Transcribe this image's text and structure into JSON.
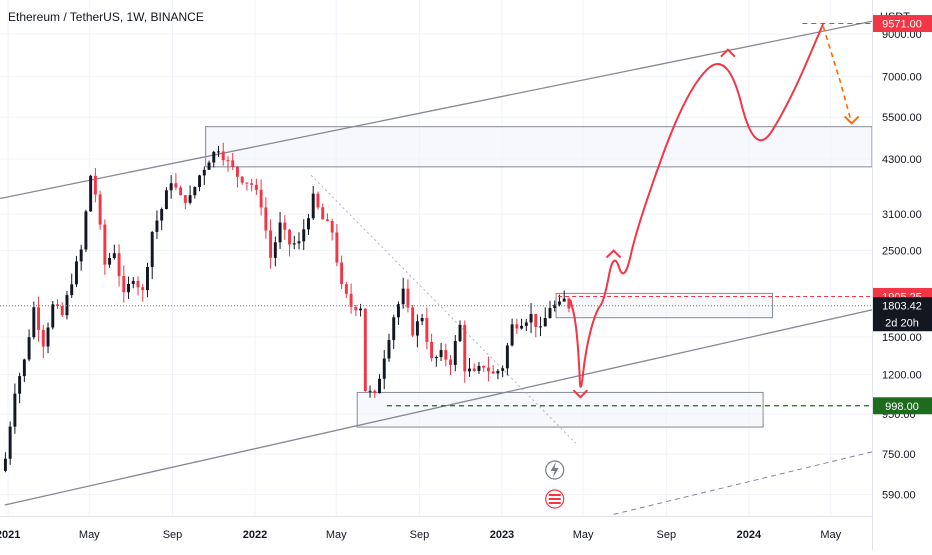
{
  "header": {
    "symbol_title": "Ethereum / TetherUS, 1W, BINANCE"
  },
  "price_axis": {
    "currency": "USDT",
    "ticks": [
      "9000.00",
      "7000.00",
      "5500.00",
      "4300.00",
      "3100.00",
      "2500.00",
      "1500.00",
      "1200.00",
      "950.00",
      "750.00",
      "590.00"
    ]
  },
  "time_axis": {
    "ticks": [
      "2021",
      "May",
      "Sep",
      "2022",
      "May",
      "Sep",
      "2023",
      "May",
      "Sep",
      "2024",
      "May"
    ]
  },
  "badges": {
    "target": {
      "label": "9571.00",
      "color": "#f23645"
    },
    "resistance": {
      "label": "1905.25",
      "color": "#f23645"
    },
    "current": {
      "label": "1803.42",
      "countdown": "2d 20h",
      "color": "#131722"
    },
    "support": {
      "label": "998.00",
      "color": "#1e6b1e"
    }
  },
  "colors": {
    "up_candle": "#131722",
    "down_candle": "#f23645",
    "projection": "#f23645",
    "projection_dashed": "#ff6d00",
    "channel": "#868993",
    "zone_border": "#868993",
    "zone_fill": "#f0f3fa",
    "support_line": "#1e6b1e"
  },
  "chart_data": {
    "type": "candlestick",
    "title": "Ethereum / TetherUS, 1W, BINANCE",
    "yscale": "log",
    "ylim": [
      520,
      11000
    ],
    "xlim": [
      "2020-12-20",
      "2024-07-01"
    ],
    "weekly_close": [
      {
        "x": "2020-12-28",
        "y": 730
      },
      {
        "x": "2021-01-11",
        "y": 1100
      },
      {
        "x": "2021-01-25",
        "y": 1300
      },
      {
        "x": "2021-02-08",
        "y": 1780
      },
      {
        "x": "2021-02-22",
        "y": 1450
      },
      {
        "x": "2021-03-08",
        "y": 1800
      },
      {
        "x": "2021-03-22",
        "y": 1700
      },
      {
        "x": "2021-04-05",
        "y": 2100
      },
      {
        "x": "2021-04-19",
        "y": 2500
      },
      {
        "x": "2021-05-03",
        "y": 3900
      },
      {
        "x": "2021-05-10",
        "y": 3500
      },
      {
        "x": "2021-05-24",
        "y": 2300
      },
      {
        "x": "2021-06-07",
        "y": 2500
      },
      {
        "x": "2021-06-21",
        "y": 1900
      },
      {
        "x": "2021-07-05",
        "y": 2150
      },
      {
        "x": "2021-07-19",
        "y": 1950
      },
      {
        "x": "2021-08-02",
        "y": 2800
      },
      {
        "x": "2021-08-16",
        "y": 3200
      },
      {
        "x": "2021-08-30",
        "y": 3800
      },
      {
        "x": "2021-09-13",
        "y": 3400
      },
      {
        "x": "2021-09-27",
        "y": 3400
      },
      {
        "x": "2021-10-11",
        "y": 3900
      },
      {
        "x": "2021-10-25",
        "y": 4300
      },
      {
        "x": "2021-11-08",
        "y": 4600
      },
      {
        "x": "2021-11-22",
        "y": 4200
      },
      {
        "x": "2021-12-06",
        "y": 3900
      },
      {
        "x": "2021-12-27",
        "y": 3700
      },
      {
        "x": "2022-01-10",
        "y": 3300
      },
      {
        "x": "2022-01-24",
        "y": 2400
      },
      {
        "x": "2022-02-07",
        "y": 2900
      },
      {
        "x": "2022-02-21",
        "y": 2600
      },
      {
        "x": "2022-03-07",
        "y": 2600
      },
      {
        "x": "2022-03-28",
        "y": 3400
      },
      {
        "x": "2022-04-11",
        "y": 3000
      },
      {
        "x": "2022-04-25",
        "y": 2800
      },
      {
        "x": "2022-05-09",
        "y": 2000
      },
      {
        "x": "2022-05-23",
        "y": 1800
      },
      {
        "x": "2022-06-06",
        "y": 1800
      },
      {
        "x": "2022-06-13",
        "y": 1100
      },
      {
        "x": "2022-06-27",
        "y": 1050
      },
      {
        "x": "2022-07-11",
        "y": 1350
      },
      {
        "x": "2022-07-25",
        "y": 1700
      },
      {
        "x": "2022-08-08",
        "y": 1950
      },
      {
        "x": "2022-08-22",
        "y": 1550
      },
      {
        "x": "2022-09-05",
        "y": 1700
      },
      {
        "x": "2022-09-19",
        "y": 1300
      },
      {
        "x": "2022-10-03",
        "y": 1350
      },
      {
        "x": "2022-10-17",
        "y": 1300
      },
      {
        "x": "2022-10-31",
        "y": 1600
      },
      {
        "x": "2022-11-07",
        "y": 1250
      },
      {
        "x": "2022-11-21",
        "y": 1200
      },
      {
        "x": "2022-12-05",
        "y": 1270
      },
      {
        "x": "2022-12-19",
        "y": 1200
      },
      {
        "x": "2023-01-02",
        "y": 1260
      },
      {
        "x": "2023-01-16",
        "y": 1600
      },
      {
        "x": "2023-01-30",
        "y": 1650
      },
      {
        "x": "2023-02-13",
        "y": 1700
      },
      {
        "x": "2023-02-27",
        "y": 1550
      },
      {
        "x": "2023-03-13",
        "y": 1800
      },
      {
        "x": "2023-03-27",
        "y": 1800
      },
      {
        "x": "2023-04-03",
        "y": 1860
      },
      {
        "x": "2023-04-10",
        "y": 1803.42
      }
    ],
    "levels": [
      {
        "label": "9571.00",
        "y": 9571
      },
      {
        "label": "1905.25",
        "y": 1905.25
      },
      {
        "label": "1803.42",
        "y": 1803.42
      },
      {
        "label": "998.00",
        "y": 998
      }
    ],
    "zones": [
      {
        "x0": "2021-10-20",
        "x1": "2024-07-01",
        "y0": 4100,
        "y1": 5200
      },
      {
        "x0": "2023-03-22",
        "x1": "2024-02-05",
        "y0": 1680,
        "y1": 1940
      },
      {
        "x0": "2022-06-01",
        "x1": "2024-01-22",
        "y0": 880,
        "y1": 1080
      }
    ],
    "channel": {
      "upper": [
        {
          "x": "2020-12-20",
          "y": 3400
        },
        {
          "x": "2024-07-01",
          "y": 9700
        }
      ],
      "lower": [
        {
          "x": "2020-12-27",
          "y": 555
        },
        {
          "x": "2024-07-01",
          "y": 1760
        }
      ],
      "outer": [
        {
          "x": "2023-06-15",
          "y": 525
        },
        {
          "x": "2024-07-01",
          "y": 760
        }
      ],
      "diagonal": [
        {
          "x": "2022-03-25",
          "y": 3900
        },
        {
          "x": "2023-04-20",
          "y": 800
        }
      ]
    },
    "projection": [
      {
        "x": "2023-04-12",
        "y": 1870
      },
      {
        "x": "2023-04-20",
        "y": 1650
      },
      {
        "x": "2023-04-25",
        "y": 1300
      },
      {
        "x": "2023-04-27",
        "y": 1050
      },
      {
        "x": "2023-05-05",
        "y": 1400
      },
      {
        "x": "2023-05-20",
        "y": 1750
      },
      {
        "x": "2023-06-01",
        "y": 1850
      },
      {
        "x": "2023-06-15",
        "y": 2500
      },
      {
        "x": "2023-07-01",
        "y": 2050
      },
      {
        "x": "2023-07-20",
        "y": 2900
      },
      {
        "x": "2023-10-01",
        "y": 6500
      },
      {
        "x": "2023-12-01",
        "y": 8200
      },
      {
        "x": "2024-01-10",
        "y": 4300
      },
      {
        "x": "2024-03-01",
        "y": 6000
      },
      {
        "x": "2024-04-20",
        "y": 9571
      }
    ],
    "projection_dashed": [
      {
        "x": "2024-04-20",
        "y": 9400
      },
      {
        "x": "2024-05-15",
        "y": 6800
      },
      {
        "x": "2024-06-01",
        "y": 5300
      }
    ]
  }
}
